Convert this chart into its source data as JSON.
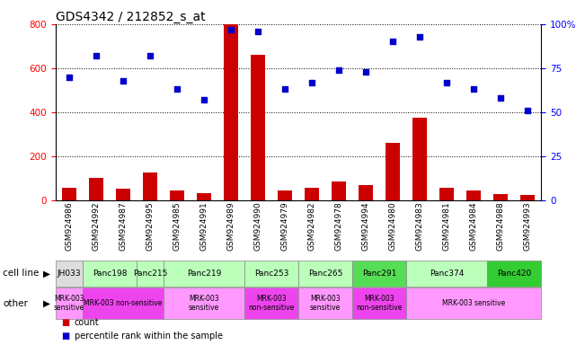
{
  "title": "GDS4342 / 212852_s_at",
  "samples": [
    "GSM924986",
    "GSM924992",
    "GSM924987",
    "GSM924995",
    "GSM924985",
    "GSM924991",
    "GSM924989",
    "GSM924990",
    "GSM924979",
    "GSM924982",
    "GSM924978",
    "GSM924994",
    "GSM924980",
    "GSM924983",
    "GSM924981",
    "GSM924984",
    "GSM924988",
    "GSM924993"
  ],
  "counts": [
    55,
    100,
    50,
    125,
    45,
    30,
    800,
    660,
    45,
    55,
    85,
    70,
    260,
    375,
    55,
    45,
    28,
    25
  ],
  "percentiles": [
    70,
    82,
    68,
    82,
    63,
    57,
    97,
    96,
    63,
    67,
    74,
    73,
    90,
    93,
    67,
    63,
    58,
    51
  ],
  "cell_lines": [
    {
      "label": "JH033",
      "start": 0,
      "end": 1,
      "color": "#dddddd"
    },
    {
      "label": "Panc198",
      "start": 1,
      "end": 3,
      "color": "#bbffbb"
    },
    {
      "label": "Panc215",
      "start": 3,
      "end": 4,
      "color": "#bbffbb"
    },
    {
      "label": "Panc219",
      "start": 4,
      "end": 7,
      "color": "#bbffbb"
    },
    {
      "label": "Panc253",
      "start": 7,
      "end": 9,
      "color": "#bbffbb"
    },
    {
      "label": "Panc265",
      "start": 9,
      "end": 11,
      "color": "#bbffbb"
    },
    {
      "label": "Panc291",
      "start": 11,
      "end": 13,
      "color": "#55dd55"
    },
    {
      "label": "Panc374",
      "start": 13,
      "end": 16,
      "color": "#bbffbb"
    },
    {
      "label": "Panc420",
      "start": 16,
      "end": 18,
      "color": "#33cc33"
    }
  ],
  "other_groups": [
    {
      "label": "MRK-003\nsensitive",
      "start": 0,
      "end": 1,
      "color": "#ff99ff"
    },
    {
      "label": "MRK-003 non-sensitive",
      "start": 1,
      "end": 4,
      "color": "#ee44ee"
    },
    {
      "label": "MRK-003\nsensitive",
      "start": 4,
      "end": 7,
      "color": "#ff99ff"
    },
    {
      "label": "MRK-003\nnon-sensitive",
      "start": 7,
      "end": 9,
      "color": "#ee44ee"
    },
    {
      "label": "MRK-003\nsensitive",
      "start": 9,
      "end": 11,
      "color": "#ff99ff"
    },
    {
      "label": "MRK-003\nnon-sensitive",
      "start": 11,
      "end": 13,
      "color": "#ee44ee"
    },
    {
      "label": "MRK-003 sensitive",
      "start": 13,
      "end": 18,
      "color": "#ff99ff"
    }
  ],
  "ylim_left": [
    0,
    800
  ],
  "ylim_right": [
    0,
    100
  ],
  "yticks_left": [
    0,
    200,
    400,
    600,
    800
  ],
  "yticks_right": [
    0,
    25,
    50,
    75,
    100
  ],
  "ytick_labels_right": [
    "0",
    "25",
    "50",
    "75",
    "100%"
  ],
  "bar_color": "#cc0000",
  "dot_color": "#0000cc",
  "bg_color": "#ffffff",
  "title_fontsize": 10,
  "tick_fontsize": 7.5,
  "label_fontsize": 6.5,
  "row_label_fontsize": 7.5,
  "legend_fontsize": 7
}
